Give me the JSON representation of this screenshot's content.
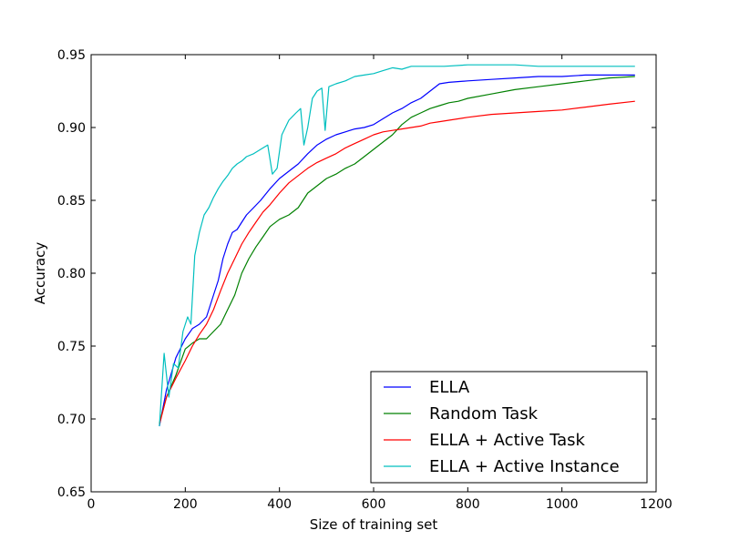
{
  "chart_data": {
    "type": "line",
    "title": "",
    "xlabel": "Size of training set",
    "ylabel": "Accuracy",
    "xlim": [
      0,
      1200
    ],
    "ylim": [
      0.65,
      0.95
    ],
    "x_ticks": [
      {
        "value": 0,
        "label": "0"
      },
      {
        "value": 200,
        "label": "200"
      },
      {
        "value": 400,
        "label": "400"
      },
      {
        "value": 600,
        "label": "600"
      },
      {
        "value": 800,
        "label": "800"
      },
      {
        "value": 1000,
        "label": "1000"
      },
      {
        "value": 1200,
        "label": "1200"
      }
    ],
    "y_ticks": [
      {
        "value": 0.65,
        "label": "0.65"
      },
      {
        "value": 0.7,
        "label": "0.70"
      },
      {
        "value": 0.75,
        "label": "0.75"
      },
      {
        "value": 0.8,
        "label": "0.80"
      },
      {
        "value": 0.85,
        "label": "0.85"
      },
      {
        "value": 0.9,
        "label": "0.90"
      },
      {
        "value": 0.95,
        "label": "0.95"
      }
    ],
    "grid": false,
    "legend_position": "lower-right",
    "series": [
      {
        "name": "ELLA",
        "color": "#0000ff",
        "points": [
          [
            145,
            0.695
          ],
          [
            160,
            0.72
          ],
          [
            180,
            0.742
          ],
          [
            200,
            0.755
          ],
          [
            215,
            0.762
          ],
          [
            230,
            0.765
          ],
          [
            245,
            0.77
          ],
          [
            260,
            0.785
          ],
          [
            270,
            0.795
          ],
          [
            280,
            0.81
          ],
          [
            290,
            0.82
          ],
          [
            300,
            0.828
          ],
          [
            310,
            0.83
          ],
          [
            320,
            0.835
          ],
          [
            330,
            0.84
          ],
          [
            345,
            0.845
          ],
          [
            360,
            0.85
          ],
          [
            380,
            0.858
          ],
          [
            400,
            0.865
          ],
          [
            420,
            0.87
          ],
          [
            440,
            0.875
          ],
          [
            460,
            0.882
          ],
          [
            480,
            0.888
          ],
          [
            500,
            0.892
          ],
          [
            520,
            0.895
          ],
          [
            540,
            0.897
          ],
          [
            560,
            0.899
          ],
          [
            580,
            0.9
          ],
          [
            600,
            0.902
          ],
          [
            620,
            0.906
          ],
          [
            640,
            0.91
          ],
          [
            660,
            0.913
          ],
          [
            680,
            0.917
          ],
          [
            700,
            0.92
          ],
          [
            720,
            0.925
          ],
          [
            740,
            0.93
          ],
          [
            760,
            0.931
          ],
          [
            800,
            0.932
          ],
          [
            850,
            0.933
          ],
          [
            900,
            0.934
          ],
          [
            950,
            0.935
          ],
          [
            1000,
            0.935
          ],
          [
            1050,
            0.936
          ],
          [
            1100,
            0.936
          ],
          [
            1155,
            0.936
          ]
        ]
      },
      {
        "name": "Random Task",
        "color": "#008000",
        "points": [
          [
            145,
            0.697
          ],
          [
            160,
            0.715
          ],
          [
            180,
            0.73
          ],
          [
            200,
            0.748
          ],
          [
            215,
            0.752
          ],
          [
            230,
            0.755
          ],
          [
            245,
            0.755
          ],
          [
            260,
            0.76
          ],
          [
            275,
            0.765
          ],
          [
            290,
            0.775
          ],
          [
            305,
            0.785
          ],
          [
            320,
            0.8
          ],
          [
            335,
            0.81
          ],
          [
            350,
            0.818
          ],
          [
            365,
            0.825
          ],
          [
            380,
            0.832
          ],
          [
            400,
            0.837
          ],
          [
            420,
            0.84
          ],
          [
            440,
            0.845
          ],
          [
            460,
            0.855
          ],
          [
            480,
            0.86
          ],
          [
            500,
            0.865
          ],
          [
            520,
            0.868
          ],
          [
            540,
            0.872
          ],
          [
            560,
            0.875
          ],
          [
            580,
            0.88
          ],
          [
            600,
            0.885
          ],
          [
            620,
            0.89
          ],
          [
            640,
            0.895
          ],
          [
            660,
            0.902
          ],
          [
            680,
            0.907
          ],
          [
            700,
            0.91
          ],
          [
            720,
            0.913
          ],
          [
            740,
            0.915
          ],
          [
            760,
            0.917
          ],
          [
            780,
            0.918
          ],
          [
            800,
            0.92
          ],
          [
            850,
            0.923
          ],
          [
            900,
            0.926
          ],
          [
            950,
            0.928
          ],
          [
            1000,
            0.93
          ],
          [
            1050,
            0.932
          ],
          [
            1100,
            0.934
          ],
          [
            1155,
            0.935
          ]
        ]
      },
      {
        "name": "ELLA + Active Task",
        "color": "#ff0000",
        "points": [
          [
            145,
            0.696
          ],
          [
            160,
            0.715
          ],
          [
            180,
            0.728
          ],
          [
            200,
            0.74
          ],
          [
            215,
            0.75
          ],
          [
            230,
            0.758
          ],
          [
            245,
            0.765
          ],
          [
            260,
            0.775
          ],
          [
            275,
            0.788
          ],
          [
            290,
            0.8
          ],
          [
            305,
            0.81
          ],
          [
            320,
            0.82
          ],
          [
            335,
            0.828
          ],
          [
            350,
            0.835
          ],
          [
            365,
            0.842
          ],
          [
            380,
            0.847
          ],
          [
            400,
            0.855
          ],
          [
            420,
            0.862
          ],
          [
            440,
            0.867
          ],
          [
            460,
            0.872
          ],
          [
            480,
            0.876
          ],
          [
            500,
            0.879
          ],
          [
            520,
            0.882
          ],
          [
            540,
            0.886
          ],
          [
            560,
            0.889
          ],
          [
            580,
            0.892
          ],
          [
            600,
            0.895
          ],
          [
            620,
            0.897
          ],
          [
            640,
            0.898
          ],
          [
            660,
            0.899
          ],
          [
            680,
            0.9
          ],
          [
            700,
            0.901
          ],
          [
            720,
            0.903
          ],
          [
            740,
            0.904
          ],
          [
            760,
            0.905
          ],
          [
            800,
            0.907
          ],
          [
            850,
            0.909
          ],
          [
            900,
            0.91
          ],
          [
            950,
            0.911
          ],
          [
            1000,
            0.912
          ],
          [
            1050,
            0.914
          ],
          [
            1100,
            0.916
          ],
          [
            1155,
            0.918
          ]
        ]
      },
      {
        "name": "ELLA + Active Instance",
        "color": "#00bfbf",
        "points": [
          [
            145,
            0.695
          ],
          [
            155,
            0.745
          ],
          [
            165,
            0.715
          ],
          [
            175,
            0.738
          ],
          [
            185,
            0.735
          ],
          [
            195,
            0.76
          ],
          [
            205,
            0.77
          ],
          [
            212,
            0.765
          ],
          [
            220,
            0.812
          ],
          [
            230,
            0.828
          ],
          [
            240,
            0.84
          ],
          [
            250,
            0.845
          ],
          [
            260,
            0.852
          ],
          [
            270,
            0.858
          ],
          [
            280,
            0.863
          ],
          [
            290,
            0.867
          ],
          [
            300,
            0.872
          ],
          [
            310,
            0.875
          ],
          [
            320,
            0.877
          ],
          [
            330,
            0.88
          ],
          [
            345,
            0.882
          ],
          [
            360,
            0.885
          ],
          [
            375,
            0.888
          ],
          [
            385,
            0.868
          ],
          [
            395,
            0.872
          ],
          [
            405,
            0.895
          ],
          [
            420,
            0.905
          ],
          [
            435,
            0.91
          ],
          [
            445,
            0.913
          ],
          [
            452,
            0.888
          ],
          [
            460,
            0.9
          ],
          [
            470,
            0.92
          ],
          [
            480,
            0.925
          ],
          [
            490,
            0.927
          ],
          [
            497,
            0.898
          ],
          [
            505,
            0.928
          ],
          [
            520,
            0.93
          ],
          [
            540,
            0.932
          ],
          [
            560,
            0.935
          ],
          [
            580,
            0.936
          ],
          [
            600,
            0.937
          ],
          [
            620,
            0.939
          ],
          [
            640,
            0.941
          ],
          [
            660,
            0.94
          ],
          [
            680,
            0.942
          ],
          [
            700,
            0.942
          ],
          [
            750,
            0.942
          ],
          [
            800,
            0.943
          ],
          [
            850,
            0.943
          ],
          [
            900,
            0.943
          ],
          [
            950,
            0.942
          ],
          [
            1000,
            0.942
          ],
          [
            1050,
            0.942
          ],
          [
            1100,
            0.942
          ],
          [
            1155,
            0.942
          ]
        ]
      }
    ]
  }
}
